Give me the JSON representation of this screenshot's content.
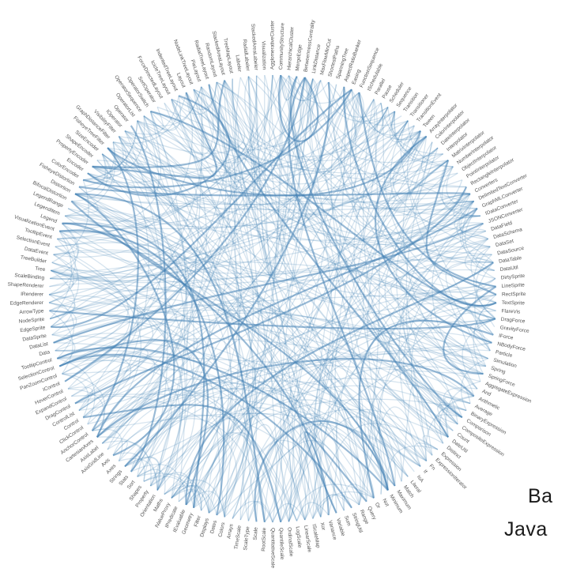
{
  "diagram": {
    "type": "hierarchical-edge-bundling",
    "edge_color": "#4682b4",
    "nodes": [
      "AgglomerativeCluster",
      "CommunityStructure",
      "HierarchicalCluster",
      "MergeEdge",
      "BetweennessCentrality",
      "LinkDistance",
      "MaxFlowMinCut",
      "ShortestPaths",
      "SpanningTree",
      "AspectRatioBanker",
      "Easing",
      "FunctionSequence",
      "ISchedulable",
      "Parallel",
      "Pause",
      "Scheduler",
      "Sequence",
      "Transition",
      "Transitioner",
      "TransitionEvent",
      "Tween",
      "ArrayInterpolator",
      "ColorInterpolator",
      "DateInterpolator",
      "Interpolator",
      "MatrixInterpolator",
      "NumberInterpolator",
      "ObjectInterpolator",
      "PointInterpolator",
      "RectangleInterpolator",
      "Converters",
      "DelimitedTextConverter",
      "GraphMLConverter",
      "IDataConverter",
      "JSONConverter",
      "DataField",
      "DataSchema",
      "DataSet",
      "DataSource",
      "DataTable",
      "DataUtil",
      "DirtySprite",
      "LineSprite",
      "RectSprite",
      "TextSprite",
      "FlareVis",
      "DragForce",
      "GravityForce",
      "IForce",
      "NBodyForce",
      "Particle",
      "Simulation",
      "Spring",
      "SpringForce",
      "AggregateExpression",
      "And",
      "Arithmetic",
      "Average",
      "BinaryExpression",
      "Comparison",
      "CompositeExpression",
      "Count",
      "DateUtil",
      "Distinct",
      "Expression",
      "ExpressionIterator",
      "Fn",
      "If",
      "IsA",
      "Literal",
      "Match",
      "Maximum",
      "Minimum",
      "Not",
      "Or",
      "Query",
      "Range",
      "StringUtil",
      "Sum",
      "Variable",
      "Variance",
      "Xor",
      "IScaleMap",
      "LinearScale",
      "LogScale",
      "OrdinalScale",
      "QuantileScale",
      "QuantitativeScale",
      "RootScale",
      "Scale",
      "ScaleType",
      "TimeScale",
      "Arrays",
      "Colors",
      "Dates",
      "Displays",
      "Filter",
      "Geometry",
      "IEvaluable",
      "IPredicate",
      "IValueProxy",
      "Maths",
      "Orientation",
      "Property",
      "Shapes",
      "Sort",
      "Stats",
      "Strings",
      "Axes",
      "Axis",
      "AxisGridLine",
      "AxisLabel",
      "CartesianAxes",
      "AnchorControl",
      "ClickControl",
      "Control",
      "ControlList",
      "DragControl",
      "ExpandControl",
      "HoverControl",
      "IControl",
      "PanZoomControl",
      "SelectionControl",
      "TooltipControl",
      "Data",
      "DataList",
      "DataSprite",
      "EdgeSprite",
      "NodeSprite",
      "ArrowType",
      "EdgeRenderer",
      "IRenderer",
      "ShapeRenderer",
      "ScaleBinding",
      "Tree",
      "TreeBuilder",
      "DataEvent",
      "SelectionEvent",
      "TooltipEvent",
      "VisualizationEvent",
      "Legend",
      "LegendItem",
      "LegendRange",
      "BifocalDistortion",
      "Distortion",
      "FisheyeDistortion",
      "ColorEncoder",
      "Encoder",
      "PropertyEncoder",
      "ShapeEncoder",
      "SizeEncoder",
      "FisheyeTreeFilter",
      "GraphDistanceFilter",
      "VisibilityFilter",
      "IOperator",
      "Operator",
      "OperatorList",
      "OperatorSequence",
      "OperatorSwitch",
      "SortOperator",
      "ForceDirectedLayout",
      "IcicleTreeLayout",
      "IndentedTreeLayout",
      "Layout",
      "NodeLinkTreeLayout",
      "PieLayout",
      "RadialTreeLayout",
      "RandomLayout",
      "StackedAreaLayout",
      "TreeMapLayout",
      "Labeler",
      "RadialLabeler",
      "StackedAreaLabeler",
      "Visualization"
    ]
  },
  "caption": {
    "line1": "Ba",
    "line2": "Java"
  }
}
